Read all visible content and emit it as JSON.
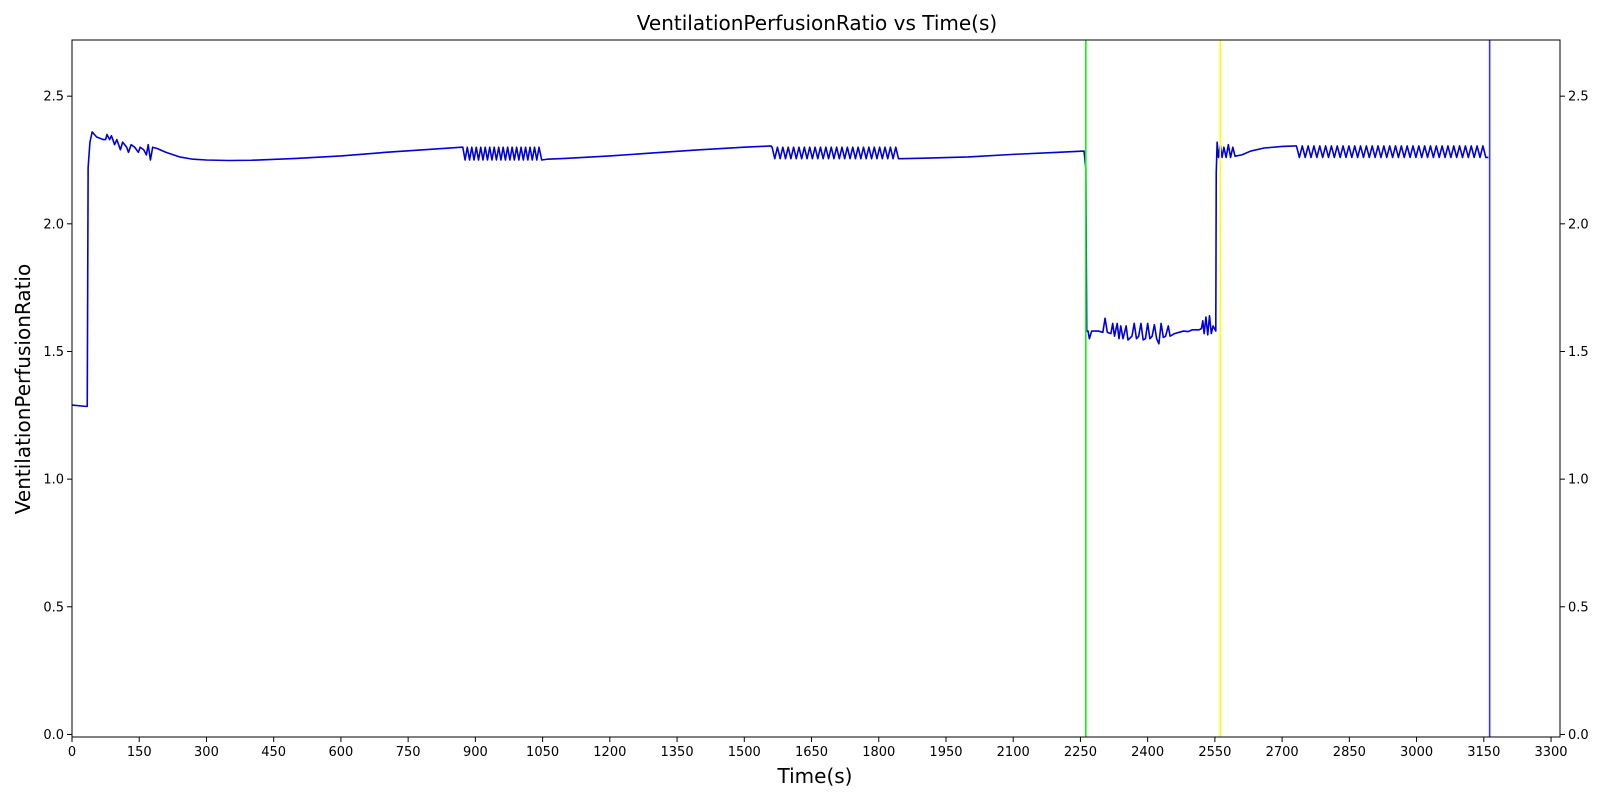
{
  "chart_data": {
    "type": "line",
    "title": "VentilationPerfusionRatio vs Time(s)",
    "xlabel": "Time(s)",
    "ylabel": "VentilationPerfusionRatio",
    "xlim": [
      0,
      3320
    ],
    "ylim": [
      -0.01,
      2.72
    ],
    "x_ticks": [
      0,
      150,
      300,
      450,
      600,
      750,
      900,
      1050,
      1200,
      1350,
      1500,
      1650,
      1800,
      1950,
      2100,
      2250,
      2400,
      2550,
      2700,
      2850,
      3000,
      3150,
      3300
    ],
    "y_ticks": [
      0.0,
      0.5,
      1.0,
      1.5,
      2.0,
      2.5
    ],
    "y_tick_labels": [
      "0.0",
      "0.5",
      "1.0",
      "1.5",
      "2.0",
      "2.5"
    ],
    "right_y_axis": true,
    "grid": false,
    "series": [
      {
        "color": "#0000dd",
        "segments": [
          {
            "type": "points",
            "points": [
              [
                0,
                1.29
              ],
              [
                30,
                1.285
              ],
              [
                34,
                1.285
              ],
              [
                36,
                2.22
              ],
              [
                40,
                2.32
              ],
              [
                45,
                2.36
              ],
              [
                50,
                2.35
              ],
              [
                55,
                2.34
              ],
              [
                70,
                2.33
              ],
              [
                75,
                2.33
              ],
              [
                78,
                2.35
              ],
              [
                84,
                2.33
              ],
              [
                88,
                2.345
              ],
              [
                95,
                2.31
              ],
              [
                100,
                2.33
              ],
              [
                108,
                2.29
              ],
              [
                113,
                2.32
              ],
              [
                122,
                2.3
              ],
              [
                126,
                2.28
              ],
              [
                132,
                2.31
              ],
              [
                140,
                2.3
              ],
              [
                148,
                2.28
              ],
              [
                152,
                2.3
              ],
              [
                160,
                2.29
              ],
              [
                166,
                2.27
              ],
              [
                170,
                2.31
              ],
              [
                175,
                2.25
              ],
              [
                180,
                2.3
              ],
              [
                190,
                2.295
              ],
              [
                210,
                2.28
              ],
              [
                240,
                2.262
              ],
              [
                270,
                2.253
              ],
              [
                300,
                2.25
              ],
              [
                350,
                2.248
              ],
              [
                400,
                2.249
              ],
              [
                500,
                2.256
              ],
              [
                600,
                2.266
              ],
              [
                700,
                2.28
              ],
              [
                800,
                2.292
              ],
              [
                870,
                2.3
              ]
            ]
          },
          {
            "type": "osc",
            "x0": 872,
            "x1": 1045,
            "period": 10,
            "high": 2.3,
            "low": 2.25
          },
          {
            "type": "points",
            "points": [
              [
                1048,
                2.25
              ],
              [
                1060,
                2.253
              ],
              [
                1100,
                2.256
              ],
              [
                1200,
                2.266
              ],
              [
                1300,
                2.278
              ],
              [
                1400,
                2.29
              ],
              [
                1500,
                2.3
              ],
              [
                1560,
                2.305
              ]
            ]
          },
          {
            "type": "osc",
            "x0": 1562,
            "x1": 1845,
            "period": 12,
            "high": 2.3,
            "low": 2.255
          },
          {
            "type": "points",
            "points": [
              [
                1848,
                2.255
              ],
              [
                1900,
                2.257
              ],
              [
                2000,
                2.262
              ],
              [
                2100,
                2.272
              ],
              [
                2200,
                2.28
              ],
              [
                2258,
                2.285
              ],
              [
                2262,
                2.22
              ],
              [
                2264,
                1.58
              ],
              [
                2267,
                1.58
              ],
              [
                2270,
                1.55
              ],
              [
                2275,
                1.58
              ],
              [
                2290,
                1.58
              ],
              [
                2300,
                1.575
              ],
              [
                2305,
                1.63
              ],
              [
                2310,
                1.575
              ],
              [
                2318,
                1.57
              ],
              [
                2322,
                1.61
              ],
              [
                2326,
                1.56
              ],
              [
                2332,
                1.61
              ],
              [
                2336,
                1.55
              ],
              [
                2340,
                1.6
              ],
              [
                2345,
                1.55
              ],
              [
                2352,
                1.6
              ],
              [
                2356,
                1.545
              ],
              [
                2365,
                1.56
              ],
              [
                2370,
                1.61
              ],
              [
                2375,
                1.55
              ],
              [
                2380,
                1.56
              ],
              [
                2385,
                1.61
              ],
              [
                2390,
                1.545
              ],
              [
                2395,
                1.55
              ],
              [
                2400,
                1.61
              ],
              [
                2405,
                1.55
              ],
              [
                2410,
                1.56
              ],
              [
                2415,
                1.605
              ],
              [
                2420,
                1.55
              ],
              [
                2425,
                1.53
              ],
              [
                2430,
                1.61
              ],
              [
                2435,
                1.555
              ],
              [
                2440,
                1.56
              ],
              [
                2446,
                1.6
              ],
              [
                2450,
                1.56
              ],
              [
                2460,
                1.57
              ],
              [
                2470,
                1.575
              ],
              [
                2480,
                1.58
              ],
              [
                2490,
                1.578
              ],
              [
                2500,
                1.585
              ],
              [
                2515,
                1.585
              ],
              [
                2520,
                1.59
              ],
              [
                2523,
                1.62
              ],
              [
                2526,
                1.57
              ],
              [
                2530,
                1.635
              ],
              [
                2534,
                1.565
              ],
              [
                2538,
                1.64
              ],
              [
                2542,
                1.57
              ],
              [
                2546,
                1.6
              ],
              [
                2552,
                1.58
              ],
              [
                2553,
                2.2
              ],
              [
                2555,
                2.32
              ],
              [
                2558,
                2.26
              ],
              [
                2562,
                2.31
              ],
              [
                2566,
                2.26
              ],
              [
                2570,
                2.3
              ],
              [
                2575,
                2.26
              ],
              [
                2580,
                2.31
              ],
              [
                2585,
                2.26
              ],
              [
                2590,
                2.3
              ],
              [
                2595,
                2.265
              ],
              [
                2610,
                2.27
              ],
              [
                2630,
                2.285
              ],
              [
                2660,
                2.297
              ],
              [
                2700,
                2.303
              ],
              [
                2730,
                2.305
              ]
            ]
          },
          {
            "type": "osc",
            "x0": 2732,
            "x1": 3160,
            "period": 13,
            "high": 2.305,
            "low": 2.26
          },
          {
            "type": "points",
            "points": [
              [
                3160,
                2.26
              ]
            ]
          }
        ]
      }
    ],
    "vlines": [
      {
        "x": 2262,
        "color": "#00ff00"
      },
      {
        "x": 2562,
        "color": "#ffff00"
      },
      {
        "x": 3163,
        "color": "#3333ff"
      }
    ]
  }
}
